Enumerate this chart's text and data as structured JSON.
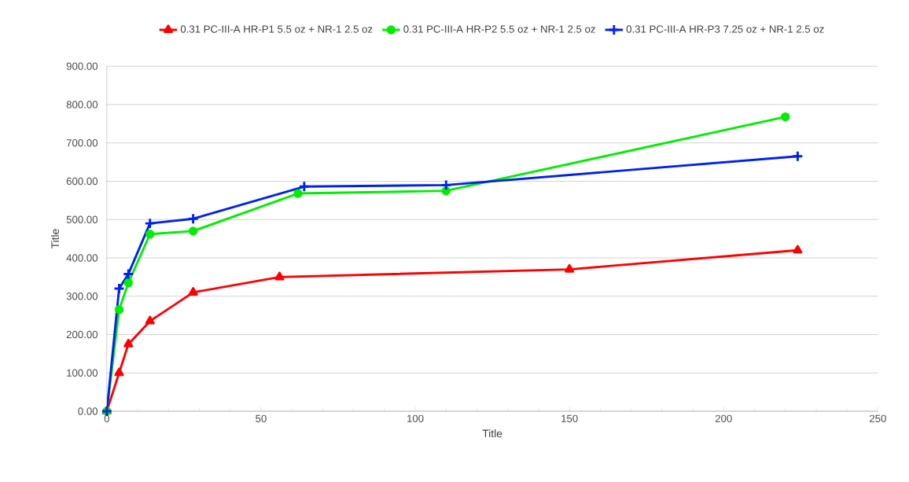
{
  "chart_data": {
    "type": "line",
    "xlabel": "Title",
    "ylabel": "Title",
    "xlim": [
      0,
      250
    ],
    "xticks": [
      0,
      50,
      100,
      150,
      200,
      250
    ],
    "ylim": [
      0,
      900
    ],
    "yticks": [
      {
        "value": 0,
        "label": "0.00"
      },
      {
        "value": 100,
        "label": "100.00"
      },
      {
        "value": 200,
        "label": "200.00"
      },
      {
        "value": 300,
        "label": "300.00"
      },
      {
        "value": 400,
        "label": "400.00"
      },
      {
        "value": 500,
        "label": "500.00"
      },
      {
        "value": 600,
        "label": "600.00"
      },
      {
        "value": 700,
        "label": "700.00"
      },
      {
        "value": 800,
        "label": "800.00"
      },
      {
        "value": 900,
        "label": "900.00"
      }
    ],
    "grid": "y",
    "legend": "top",
    "line_style": "solid",
    "series": [
      {
        "name": "0.31 PC-III-A HR-P1 5.5 oz + NR-1 2.5 oz",
        "color": "#ff0000",
        "marker": "triangle",
        "x": [
          0,
          4,
          7,
          14,
          28,
          56,
          150,
          224
        ],
        "values": [
          0,
          100,
          175,
          235,
          310,
          350,
          370,
          420
        ]
      },
      {
        "name": "0.31 PC-III-A HR-P2 5.5 oz + NR-1 2.5 oz",
        "color": "#00ee00",
        "marker": "circle",
        "x": [
          0,
          4,
          7,
          14,
          28,
          62,
          110,
          220
        ],
        "values": [
          0,
          265,
          335,
          462,
          470,
          568,
          575,
          768
        ]
      },
      {
        "name": "0.31 PC-III-A HR-P3 7.25 oz + NR-1 2.5 oz",
        "color": "#0022ee",
        "marker": "cross",
        "x": [
          0,
          4,
          7,
          14,
          28,
          64,
          110,
          224
        ],
        "values": [
          0,
          320,
          358,
          490,
          502,
          586,
          590,
          665
        ]
      }
    ]
  }
}
